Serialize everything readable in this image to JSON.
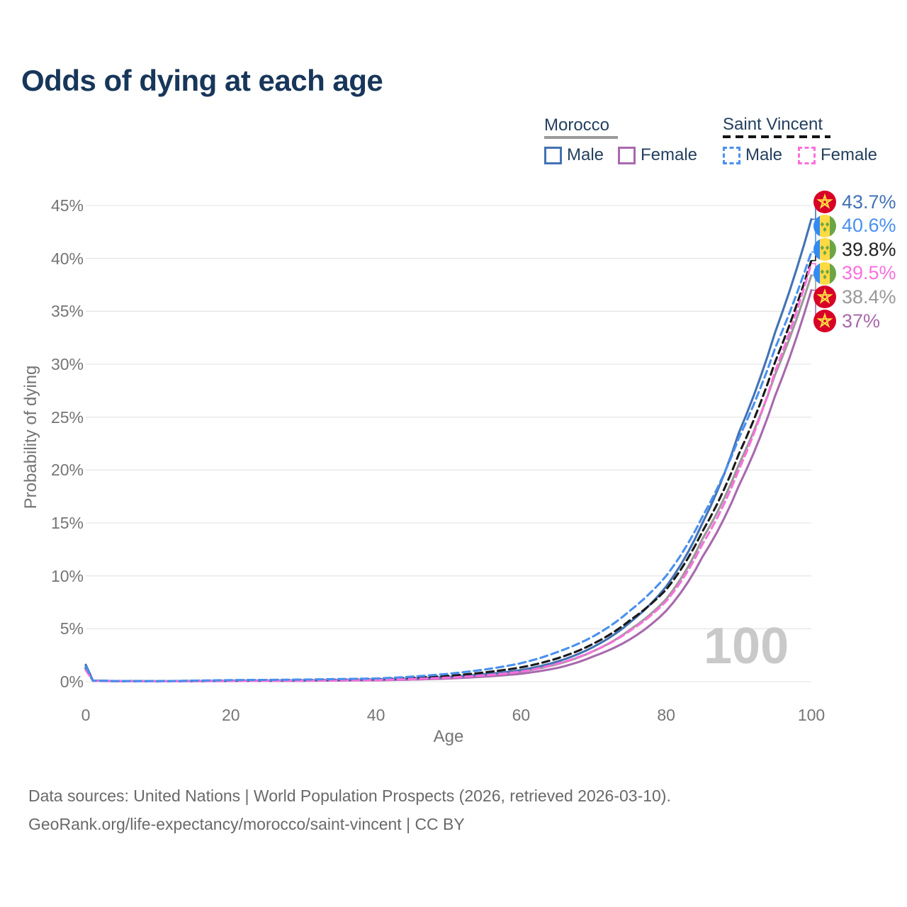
{
  "title": "Odds of dying at each age",
  "watermark": "100",
  "legend": {
    "groups": [
      {
        "name": "Morocco",
        "line_style": "solid",
        "underline_color": "#9a9a9a",
        "items": [
          {
            "label": "Male",
            "color": "#4272b4"
          },
          {
            "label": "Female",
            "color": "#a869ad"
          }
        ]
      },
      {
        "name": "Saint Vincent",
        "line_style": "dashed",
        "underline_color": "#141414",
        "items": [
          {
            "label": "Male",
            "color": "#4a90ee"
          },
          {
            "label": "Female",
            "color": "#fb6fdc"
          }
        ]
      }
    ]
  },
  "footer": {
    "line1": "Data sources: United Nations | World Population Prospects (2026, retrieved 2026-03-10).",
    "line2": "GeoRank.org/life-expectancy/morocco/saint-vincent | CC BY"
  },
  "chart_data": {
    "type": "line",
    "title": "Odds of dying at each age",
    "xlabel": "Age",
    "ylabel": "Probability of dying",
    "xlim": [
      0,
      100
    ],
    "ylim": [
      0,
      45
    ],
    "grid": true,
    "xticks": [
      0,
      20,
      40,
      60,
      80,
      100
    ],
    "xtick_labels": [
      "0",
      "20",
      "40",
      "60",
      "80",
      "100"
    ],
    "yticks": [
      0,
      5,
      10,
      15,
      20,
      25,
      30,
      35,
      40,
      45
    ],
    "ytick_labels": [
      "0%",
      "5%",
      "10%",
      "15%",
      "20%",
      "25%",
      "30%",
      "35%",
      "40%",
      "45%"
    ],
    "legend_position": "top-right",
    "x": [
      0,
      1,
      5,
      10,
      15,
      20,
      25,
      30,
      35,
      40,
      45,
      50,
      55,
      60,
      65,
      70,
      75,
      80,
      85,
      90,
      95,
      100
    ],
    "series": [
      {
        "id": "morocco-total",
        "name": "Morocco Both sexes",
        "country": "Morocco",
        "sex": "Both",
        "color": "#999999",
        "label_color": "#999999",
        "dash": false,
        "flag": "morocco",
        "end_label": "38.4%",
        "values": [
          1.45,
          0.09,
          0.048,
          0.038,
          0.055,
          0.08,
          0.09,
          0.1,
          0.14,
          0.17,
          0.26,
          0.38,
          0.6,
          0.95,
          1.65,
          2.9,
          4.9,
          7.8,
          13.5,
          20.5,
          29.0,
          38.4
        ]
      },
      {
        "id": "morocco-female",
        "name": "Morocco Female",
        "country": "Morocco",
        "sex": "Female",
        "color": "#a869ad",
        "label_color": "#a869ad",
        "dash": false,
        "flag": "morocco",
        "end_label": "37%",
        "values": [
          1.3,
          0.08,
          0.04,
          0.03,
          0.045,
          0.06,
          0.07,
          0.08,
          0.11,
          0.13,
          0.2,
          0.3,
          0.48,
          0.75,
          1.3,
          2.4,
          4.0,
          6.7,
          11.8,
          18.5,
          27.0,
          37.0
        ]
      },
      {
        "id": "morocco-male",
        "name": "Morocco Male",
        "country": "Morocco",
        "sex": "Male",
        "color": "#4272b4",
        "label_color": "#4272b4",
        "dash": false,
        "flag": "morocco",
        "end_label": "43.7%",
        "values": [
          1.6,
          0.1,
          0.05,
          0.04,
          0.06,
          0.09,
          0.1,
          0.12,
          0.16,
          0.2,
          0.3,
          0.45,
          0.7,
          1.1,
          1.9,
          3.3,
          5.6,
          9.0,
          15.0,
          23.5,
          33.0,
          43.7
        ]
      },
      {
        "id": "saint-vincent-total",
        "name": "Saint Vincent Both sexes",
        "country": "Saint Vincent",
        "sex": "Both",
        "color": "#1a1a1a",
        "label_color": "#222222",
        "dash": true,
        "flag": "saint-vincent",
        "end_label": "39.8%",
        "values": [
          1.25,
          0.09,
          0.055,
          0.045,
          0.08,
          0.11,
          0.13,
          0.15,
          0.19,
          0.23,
          0.37,
          0.55,
          0.88,
          1.35,
          2.2,
          3.6,
          5.8,
          8.7,
          14.2,
          21.5,
          30.2,
          39.8
        ]
      },
      {
        "id": "saint-vincent-female",
        "name": "Saint Vincent Female",
        "country": "Saint Vincent",
        "sex": "Female",
        "color": "#fb6fdc",
        "label_color": "#fb6fdc",
        "dash": true,
        "flag": "saint-vincent",
        "end_label": "39.5%",
        "values": [
          1.1,
          0.08,
          0.045,
          0.035,
          0.05,
          0.07,
          0.08,
          0.1,
          0.13,
          0.16,
          0.25,
          0.38,
          0.6,
          0.95,
          1.7,
          2.9,
          4.8,
          7.6,
          13.0,
          20.0,
          29.3,
          39.5
        ]
      },
      {
        "id": "saint-vincent-male",
        "name": "Saint Vincent Male",
        "country": "Saint Vincent",
        "sex": "Male",
        "color": "#4a90ee",
        "label_color": "#4a90ee",
        "dash": true,
        "flag": "saint-vincent",
        "end_label": "40.6%",
        "values": [
          1.4,
          0.1,
          0.06,
          0.05,
          0.1,
          0.15,
          0.17,
          0.2,
          0.25,
          0.3,
          0.48,
          0.75,
          1.15,
          1.75,
          2.8,
          4.3,
          6.7,
          10.0,
          15.6,
          23.0,
          31.5,
          40.6
        ]
      }
    ]
  }
}
